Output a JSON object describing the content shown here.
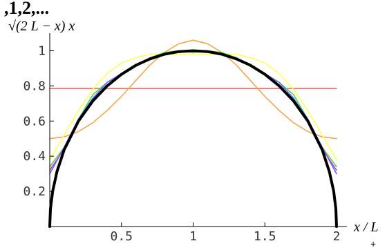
{
  "chart_data": {
    "type": "line",
    "top_text": ",1,2,...",
    "ylabel": "√(2 L − x) x",
    "xlabel": "x / L",
    "corner_mark": "+",
    "xlim": [
      0,
      2
    ],
    "ylim": [
      0,
      1.1
    ],
    "x_ticks": [
      0.5,
      1,
      1.5,
      2
    ],
    "x_tick_labels": [
      "0.5",
      "1",
      "1.5",
      "2"
    ],
    "y_ticks": [
      0.2,
      0.4,
      0.6,
      0.8,
      1
    ],
    "y_tick_labels": [
      "0.2",
      "0.4",
      "0.6",
      "0.8",
      "1"
    ],
    "grid": false,
    "series": [
      {
        "color": "#ff6666",
        "x": [
          0,
          2
        ],
        "y": [
          0.785,
          0.785
        ]
      },
      {
        "color": "#f5a54a",
        "x": [
          0,
          0.1,
          0.2,
          0.3,
          0.4,
          0.5,
          0.6,
          0.7,
          0.8,
          0.9,
          1,
          1.1,
          1.2,
          1.3,
          1.4,
          1.5,
          1.6,
          1.7,
          1.8,
          1.9,
          2
        ],
        "y": [
          0.5,
          0.51,
          0.54,
          0.59,
          0.66,
          0.74,
          0.83,
          0.92,
          0.99,
          1.04,
          1.06,
          1.04,
          0.99,
          0.92,
          0.83,
          0.74,
          0.66,
          0.59,
          0.54,
          0.51,
          0.5
        ]
      },
      {
        "color": "#ffff55",
        "x": [
          0,
          0.1,
          0.2,
          0.3,
          0.4,
          0.5,
          0.6,
          0.7,
          0.8,
          0.9,
          1,
          1.1,
          1.2,
          1.3,
          1.4,
          1.5,
          1.6,
          1.7,
          1.8,
          1.9,
          2
        ],
        "y": [
          0.38,
          0.52,
          0.66,
          0.78,
          0.87,
          0.93,
          0.96,
          0.98,
          0.98,
          0.98,
          0.98,
          0.98,
          0.98,
          0.98,
          0.96,
          0.93,
          0.87,
          0.78,
          0.66,
          0.52,
          0.38
        ]
      },
      {
        "color": "#44dd44",
        "x": [
          0,
          0.1,
          0.2,
          0.3,
          0.4,
          0.5,
          0.6,
          0.7,
          0.8,
          0.9,
          1,
          1.1,
          1.2,
          1.3,
          1.4,
          1.5,
          1.6,
          1.7,
          1.8,
          1.9,
          2
        ],
        "y": [
          0.34,
          0.45,
          0.61,
          0.75,
          0.82,
          0.86,
          0.91,
          0.96,
          0.99,
          1.0,
          0.99,
          1.0,
          0.99,
          0.96,
          0.91,
          0.86,
          0.82,
          0.75,
          0.61,
          0.45,
          0.34
        ]
      },
      {
        "color": "#6666ff",
        "x": [
          0,
          0.1,
          0.2,
          0.3,
          0.4,
          0.5,
          0.6,
          0.7,
          0.8,
          0.9,
          1,
          1.1,
          1.2,
          1.3,
          1.4,
          1.5,
          1.6,
          1.7,
          1.8,
          1.9,
          2
        ],
        "y": [
          0.3,
          0.45,
          0.61,
          0.73,
          0.82,
          0.87,
          0.92,
          0.95,
          0.98,
          1.0,
          1.0,
          1.0,
          0.98,
          0.95,
          0.92,
          0.87,
          0.82,
          0.73,
          0.61,
          0.45,
          0.3
        ]
      },
      {
        "color": "#bb44cc",
        "x": [
          0,
          0.1,
          0.2,
          0.3,
          0.4,
          0.5,
          0.6,
          0.7,
          0.8,
          0.9,
          1,
          1.1,
          1.2,
          1.3,
          1.4,
          1.5,
          1.6,
          1.7,
          1.8,
          1.9,
          2
        ],
        "y": [
          0.32,
          0.44,
          0.6,
          0.72,
          0.8,
          0.87,
          0.92,
          0.96,
          0.98,
          0.99,
          1.0,
          0.99,
          0.98,
          0.96,
          0.92,
          0.87,
          0.8,
          0.72,
          0.6,
          0.44,
          0.32
        ]
      },
      {
        "color": "#000000",
        "x": [
          0,
          0.005,
          0.02,
          0.05,
          0.1,
          0.2,
          0.3,
          0.4,
          0.5,
          0.6,
          0.7,
          0.8,
          0.9,
          1,
          1.1,
          1.2,
          1.3,
          1.4,
          1.5,
          1.6,
          1.7,
          1.8,
          1.9,
          1.95,
          1.98,
          1.995,
          2
        ],
        "y": [
          0,
          0.1,
          0.2,
          0.312,
          0.436,
          0.6,
          0.714,
          0.8,
          0.866,
          0.917,
          0.954,
          0.98,
          0.995,
          1.0,
          0.995,
          0.98,
          0.954,
          0.917,
          0.866,
          0.8,
          0.714,
          0.6,
          0.436,
          0.312,
          0.2,
          0.1,
          0
        ]
      }
    ]
  }
}
